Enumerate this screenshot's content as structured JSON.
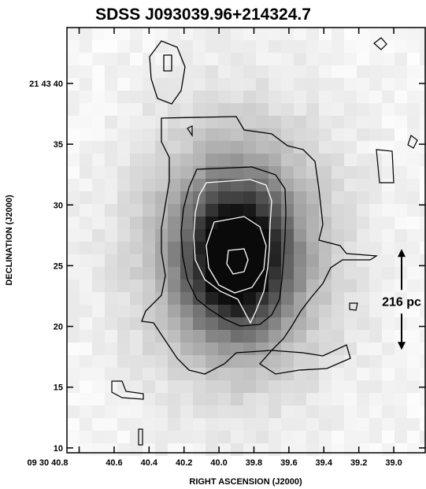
{
  "chart_data": {
    "type": "heatmap",
    "title": "SDSS J093039.96+214324.7",
    "xlabel": "RIGHT ASCENSION (J2000)",
    "ylabel": "DECLINATION (J2000)",
    "x_axis": {
      "unit": "seconds of RA past 09h30m",
      "range": [
        40.87,
        38.82
      ],
      "ticks": [
        {
          "value": 40.8,
          "label": "09 30 40.8"
        },
        {
          "value": 40.6,
          "label": "40.6"
        },
        {
          "value": 40.4,
          "label": "40.4"
        },
        {
          "value": 40.2,
          "label": "40.2"
        },
        {
          "value": 40.0,
          "label": "40.0"
        },
        {
          "value": 39.8,
          "label": "39.8"
        },
        {
          "value": 39.6,
          "label": "39.6"
        },
        {
          "value": 39.4,
          "label": "39.4"
        },
        {
          "value": 39.2,
          "label": "39.2"
        },
        {
          "value": 39.0,
          "label": "39.0"
        }
      ]
    },
    "y_axis": {
      "unit": "arcsec of Dec past +21d43m",
      "range": [
        9.6,
        44.6
      ],
      "ticks": [
        {
          "value": 40,
          "label": "21 43 40"
        },
        {
          "value": 35,
          "label": "35"
        },
        {
          "value": 30,
          "label": "30"
        },
        {
          "value": 25,
          "label": "25"
        },
        {
          "value": 20,
          "label": "20"
        },
        {
          "value": 15,
          "label": "15"
        },
        {
          "value": 10,
          "label": "10"
        }
      ]
    },
    "image": {
      "colormap": "grayscale (white = faint, black = bright)",
      "source_ra": 39.9,
      "source_dec": 25.6,
      "peak_intensity": 1.0
    },
    "contours": [
      {
        "level": 1,
        "color": "#000000"
      },
      {
        "level": 2,
        "color": "#000000"
      },
      {
        "level": 3,
        "color": "#ffffff"
      },
      {
        "level": 4,
        "color": "#ffffff"
      },
      {
        "level": 5,
        "color": "#ffffff"
      }
    ],
    "scale_bar": {
      "label": "216 pc",
      "dec_from": 23.0,
      "dec_to": 19.5
    },
    "colors": {
      "frame": "#000000",
      "contour_outer": "#000000",
      "contour_inner": "#ffffff"
    }
  }
}
